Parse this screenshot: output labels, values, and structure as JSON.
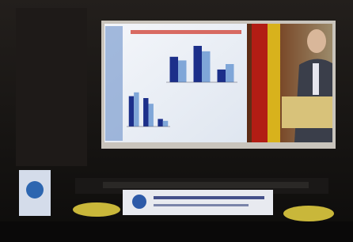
{
  "slide_charts": [
    {
      "type": "bar",
      "categories": [
        null,
        null,
        null
      ],
      "ylim": [
        0,
        100
      ],
      "series": [
        {
          "color": "#1c2f8a",
          "values": [
            70,
            100,
            35
          ]
        },
        {
          "color": "#7fa6d8",
          "values": [
            60,
            85,
            50
          ]
        }
      ]
    },
    {
      "type": "bar",
      "categories": [
        null,
        null,
        null
      ],
      "ylim": [
        0,
        100
      ],
      "series": [
        {
          "color": "#1c2f8a",
          "values": [
            80,
            75,
            20
          ]
        },
        {
          "color": "#7fa6d8",
          "values": [
            90,
            60,
            15
          ]
        }
      ]
    }
  ]
}
